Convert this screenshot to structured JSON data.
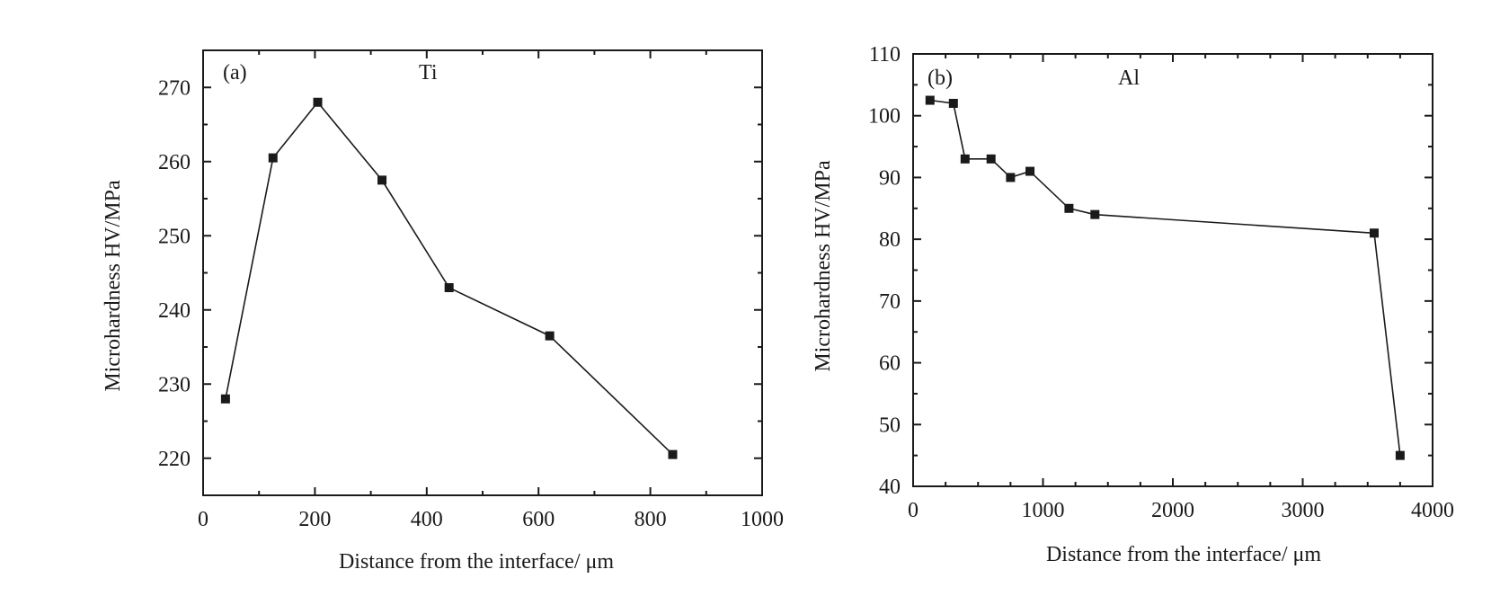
{
  "chart_data": [
    {
      "type": "line",
      "panel_label": "(a)",
      "annotation": "Ti",
      "xlabel": "Distance from the interface/ μm",
      "ylabel": "Microhardness HV/MPa",
      "xlim": [
        0,
        1000
      ],
      "ylim": [
        215,
        275
      ],
      "xticks": [
        0,
        200,
        400,
        600,
        800,
        1000
      ],
      "yticks": [
        220,
        230,
        240,
        250,
        260,
        270
      ],
      "x_minor_step": 100,
      "y_minor_step": 5,
      "grid": false,
      "marker": "square",
      "series": [
        {
          "x": [
            40,
            125,
            205,
            320,
            440,
            620,
            840
          ],
          "y": [
            228,
            260.5,
            268,
            257.5,
            243,
            236.5,
            220.5
          ]
        }
      ]
    },
    {
      "type": "line",
      "panel_label": "(b)",
      "annotation": "Al",
      "xlabel": "Distance from the interface/ μm",
      "ylabel": "Microhardness HV/MPa",
      "xlim": [
        0,
        4000
      ],
      "ylim": [
        40,
        110
      ],
      "xticks": [
        0,
        1000,
        2000,
        3000,
        4000
      ],
      "yticks": [
        40,
        50,
        60,
        70,
        80,
        90,
        100,
        110
      ],
      "x_minor_step": 250,
      "y_minor_step": 5,
      "grid": false,
      "marker": "square",
      "series": [
        {
          "x": [
            130,
            310,
            400,
            600,
            750,
            900,
            1200,
            1400,
            3550,
            3750
          ],
          "y": [
            102.5,
            102,
            93,
            93,
            90,
            91,
            85,
            84,
            81,
            45
          ]
        }
      ]
    }
  ]
}
